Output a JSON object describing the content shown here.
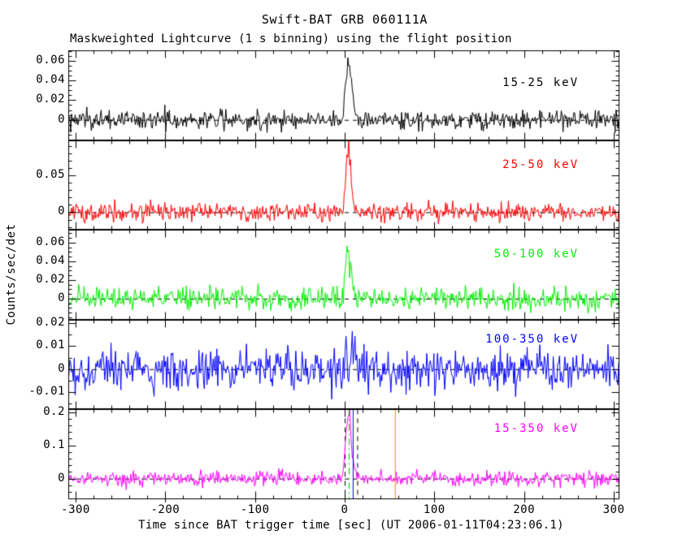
{
  "title": "Swift-BAT GRB 060111A",
  "subtitle": "Maskweighted Lightcurve (1 s binning) using the flight position",
  "xlabel": "Time since BAT trigger time [sec] (UT 2006-01-11T04:23:06.1)",
  "ylabel": "Counts/sec/det",
  "chart_data": {
    "type": "line",
    "title": "Swift-BAT GRB 060111A",
    "subtitle": "Maskweighted Lightcurve (1 s binning) using the flight position",
    "xlabel": "Time since BAT trigger time [sec] (UT 2006-01-11T04:23:06.1)",
    "ylabel": "Counts/sec/det",
    "xlim": [
      -308,
      306
    ],
    "binning_sec": 1,
    "grid": false,
    "legend_position": "inside-top-right-per-panel",
    "x_ticks": [
      {
        "v": -300,
        "label": "-300"
      },
      {
        "v": -200,
        "label": "-200"
      },
      {
        "v": -100,
        "label": "-100"
      },
      {
        "v": 0,
        "label": "0"
      },
      {
        "v": 100,
        "label": "100"
      },
      {
        "v": 200,
        "label": "200"
      },
      {
        "v": 300,
        "label": "300"
      }
    ],
    "x_minor_step": 20,
    "panels": [
      {
        "label": "15-25 keV",
        "color": "#000000",
        "ylim": [
          -0.0205,
          0.0705
        ],
        "yticks": [
          {
            "v": 0,
            "label": "0"
          },
          {
            "v": 0.02,
            "label": "0.02"
          },
          {
            "v": 0.04,
            "label": "0.04"
          },
          {
            "v": 0.06,
            "label": "0.06"
          }
        ],
        "y_minor_step": 0.005,
        "baseline": 0,
        "noise_sigma": 0.005,
        "zero_line": "dashed",
        "burst_envelope": [
          [
            -6,
            0
          ],
          [
            -3,
            0.002
          ],
          [
            -1,
            0.012
          ],
          [
            1,
            0.035
          ],
          [
            3,
            0.048
          ],
          [
            5,
            0.056
          ],
          [
            7,
            0.05
          ],
          [
            8,
            0.042
          ],
          [
            9,
            0.028
          ],
          [
            11,
            0.012
          ],
          [
            13,
            0.005
          ],
          [
            16,
            0
          ]
        ],
        "peak_value": 0.056,
        "peak_time": 5
      },
      {
        "label": "25-50 keV",
        "color": "#ff0000",
        "ylim": [
          -0.024,
          0.098
        ],
        "yticks": [
          {
            "v": 0,
            "label": "0"
          },
          {
            "v": 0.05,
            "label": "0.05"
          }
        ],
        "y_minor_step": 0.01,
        "baseline": 0,
        "noise_sigma": 0.006,
        "zero_line": "dashed",
        "burst_envelope": [
          [
            -4,
            0
          ],
          [
            -2,
            0.005
          ],
          [
            0,
            0.03
          ],
          [
            2,
            0.07
          ],
          [
            4,
            0.088
          ],
          [
            5,
            0.09
          ],
          [
            6,
            0.075
          ],
          [
            8,
            0.04
          ],
          [
            10,
            0.015
          ],
          [
            12,
            0.005
          ],
          [
            15,
            0
          ]
        ],
        "peak_value": 0.09,
        "peak_time": 5
      },
      {
        "label": "50-100 keV",
        "color": "#00ee00",
        "ylim": [
          -0.0225,
          0.0735
        ],
        "yticks": [
          {
            "v": 0,
            "label": "0"
          },
          {
            "v": 0.02,
            "label": "0.02"
          },
          {
            "v": 0.04,
            "label": "0.04"
          },
          {
            "v": 0.06,
            "label": "0.06"
          }
        ],
        "y_minor_step": 0.005,
        "baseline": 0,
        "noise_sigma": 0.0055,
        "zero_line": "dashed",
        "burst_envelope": [
          [
            -3,
            0
          ],
          [
            -1,
            0.008
          ],
          [
            1,
            0.04
          ],
          [
            3,
            0.062
          ],
          [
            4,
            0.06
          ],
          [
            6,
            0.035
          ],
          [
            8,
            0.015
          ],
          [
            10,
            0.006
          ],
          [
            13,
            0
          ]
        ],
        "peak_value": 0.062,
        "peak_time": 3
      },
      {
        "label": "100-350 keV",
        "color": "#0000ff",
        "ylim": [
          -0.0175,
          0.0215
        ],
        "yticks": [
          {
            "v": -0.01,
            "label": "-0.01"
          },
          {
            "v": 0,
            "label": "0"
          },
          {
            "v": 0.01,
            "label": "0.01"
          },
          {
            "v": 0.02,
            "label": "0.02"
          }
        ],
        "y_minor_step": 0.005,
        "baseline": 0,
        "noise_sigma": 0.0045,
        "zero_line": "dashed",
        "burst_envelope": [
          [
            -2,
            0
          ],
          [
            1,
            0.004
          ],
          [
            4,
            0.007
          ],
          [
            7,
            0.005
          ],
          [
            10,
            0.002
          ],
          [
            14,
            0
          ]
        ],
        "peak_value": 0.007,
        "peak_time": 4
      },
      {
        "label": "15-350 keV",
        "color": "#ff00ff",
        "ylim": [
          -0.062,
          0.208
        ],
        "yticks": [
          {
            "v": 0,
            "label": "0"
          },
          {
            "v": 0.1,
            "label": "0.1"
          },
          {
            "v": 0.2,
            "label": "0.2"
          }
        ],
        "y_minor_step": 0.02,
        "baseline": 0,
        "noise_sigma": 0.0115,
        "zero_line": "dashed",
        "burst_envelope": [
          [
            -5,
            0
          ],
          [
            -3,
            0.005
          ],
          [
            -1,
            0.04
          ],
          [
            0,
            0.1
          ],
          [
            2,
            0.17
          ],
          [
            4,
            0.195
          ],
          [
            5,
            0.2
          ],
          [
            6,
            0.185
          ],
          [
            7,
            0.15
          ],
          [
            8,
            0.09
          ],
          [
            10,
            0.04
          ],
          [
            12,
            0.015
          ],
          [
            15,
            0.005
          ],
          [
            18,
            0
          ]
        ],
        "peak_value": 0.2,
        "peak_time": 5
      }
    ],
    "event_markers": [
      {
        "t": 0,
        "style": "dashed",
        "color": "#000000",
        "panel_index": 4
      },
      {
        "t": 14,
        "style": "dashed",
        "color": "#000000",
        "panel_index": 4
      },
      {
        "t": 4.5,
        "style": "dashdot",
        "color": "#00cc00",
        "panel_index": 4
      },
      {
        "t": 9,
        "style": "solid",
        "color": "#0000ff",
        "panel_index": 4
      },
      {
        "t": 56,
        "style": "solid",
        "color": "#ff8c00",
        "panel_index": 4
      }
    ]
  }
}
